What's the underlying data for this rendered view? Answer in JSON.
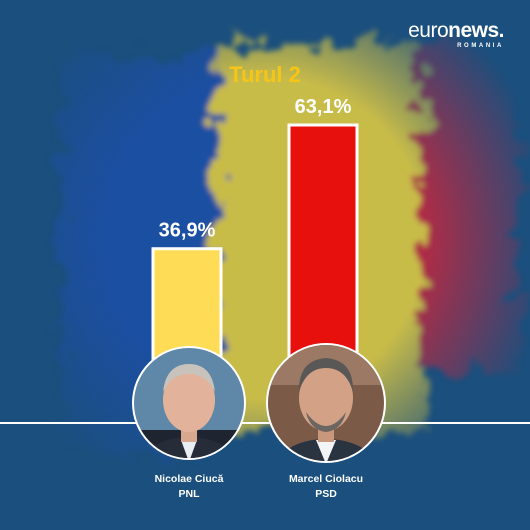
{
  "brand": {
    "wordmark_regular": "euro",
    "wordmark_bold": "news.",
    "region": "ROMANIA"
  },
  "colors": {
    "background": "#1b4f7d",
    "flag_blue": "#1f4fa8",
    "flag_yellow": "#f2d648",
    "flag_red": "#d7263d",
    "title": "#f5c518"
  },
  "chart_data": {
    "type": "bar",
    "title": "Turul 2",
    "categories": [
      "Nicolae Ciucă",
      "Marcel Ciolacu"
    ],
    "parties": [
      "PNL",
      "PSD"
    ],
    "values": [
      36.9,
      63.1
    ],
    "value_labels": [
      "36,9%",
      "63,1%"
    ],
    "colors": [
      "#ffdc55",
      "#e8100d"
    ],
    "unit": "%",
    "ylim": [
      0,
      63.1
    ],
    "grid": false,
    "legend": "none"
  }
}
